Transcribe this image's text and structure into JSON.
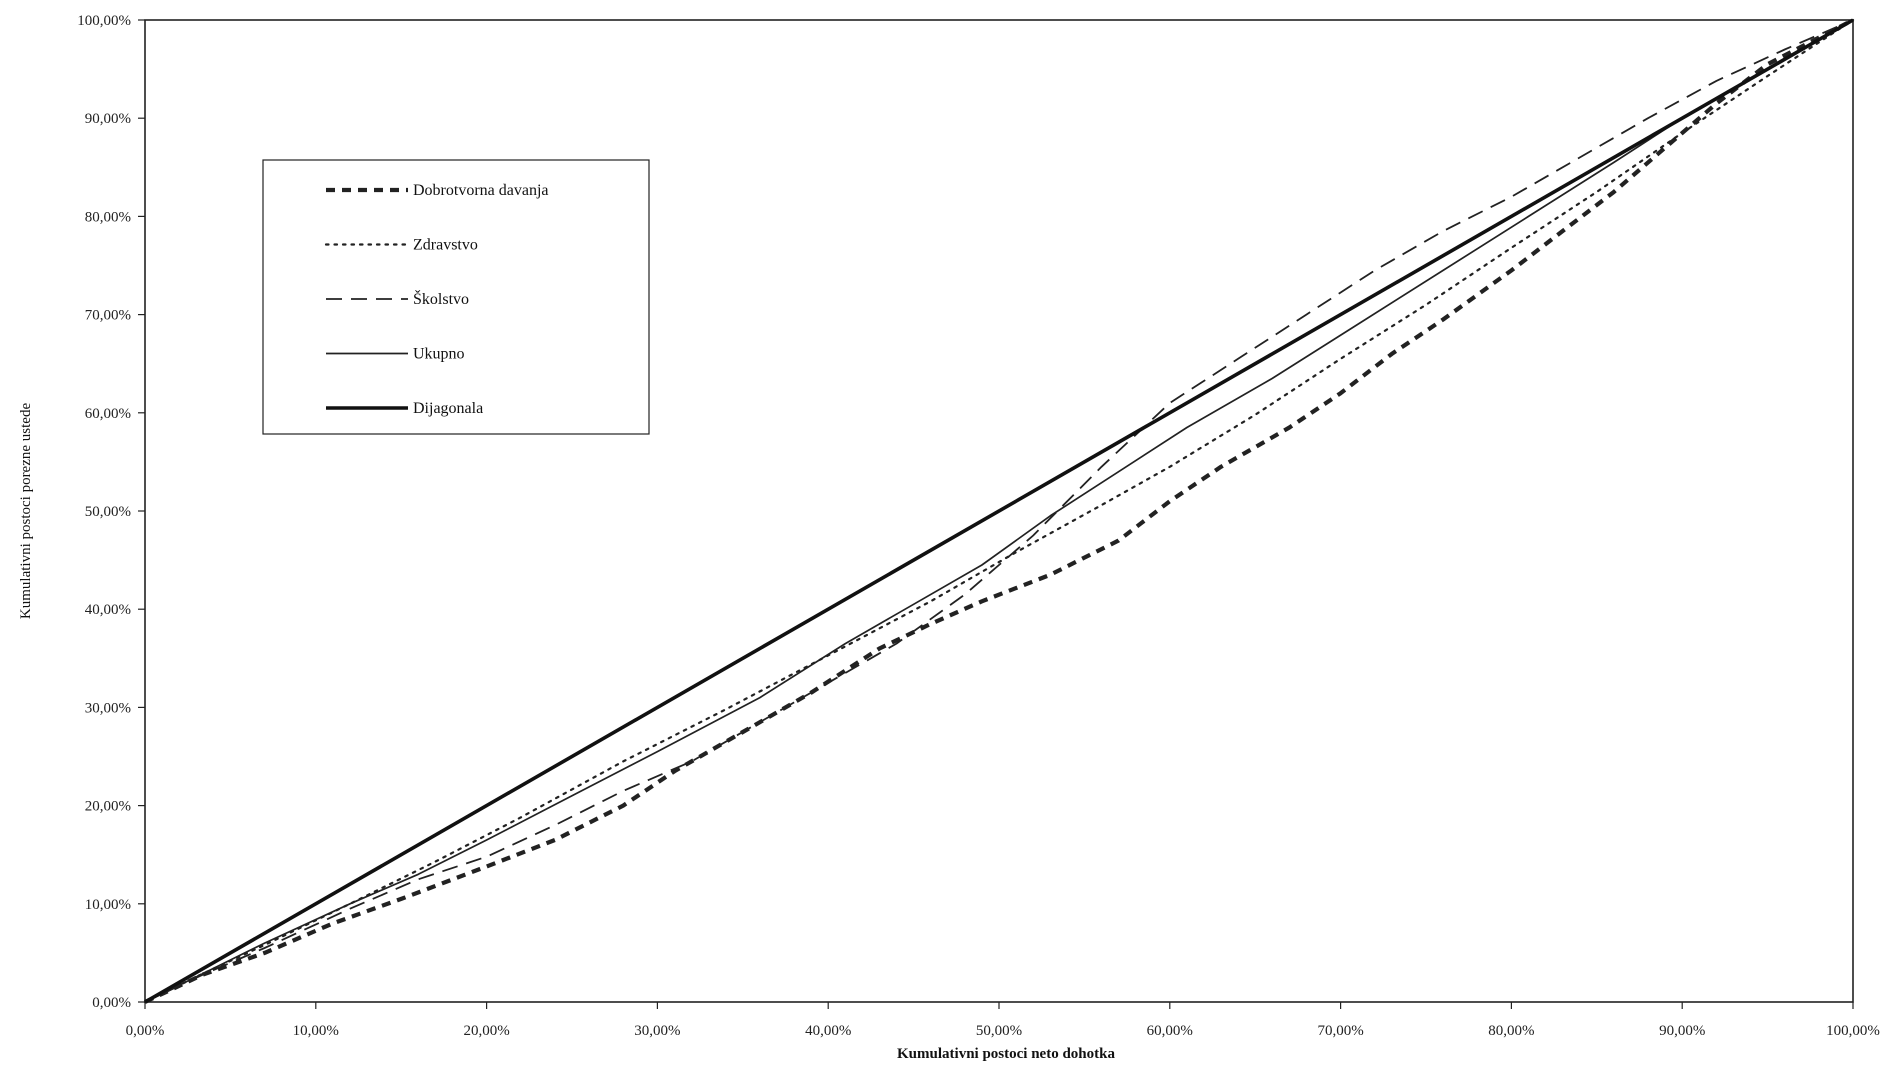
{
  "chart_data": {
    "type": "line",
    "title": "",
    "xlabel": "Kumulativni postoci neto dohotka",
    "ylabel": "Kumulativni postoci porezne ustede",
    "xlim": [
      0,
      100
    ],
    "ylim": [
      0,
      100
    ],
    "x_tick_labels": [
      "0,00%",
      "10,00%",
      "20,00%",
      "30,00%",
      "40,00%",
      "50,00%",
      "60,00%",
      "70,00%",
      "80,00%",
      "90,00%",
      "100,00%"
    ],
    "y_tick_labels": [
      "0,00%",
      "10,00%",
      "20,00%",
      "30,00%",
      "40,00%",
      "50,00%",
      "60,00%",
      "70,00%",
      "80,00%",
      "90,00%",
      "100,00%"
    ],
    "grid": false,
    "legend_position": "top-left",
    "series": [
      {
        "name": "Dobrotvorna davanja",
        "style": "heavy-dashed",
        "color": "#222222",
        "points": [
          [
            0,
            0
          ],
          [
            3.4,
            2.8
          ],
          [
            7,
            5
          ],
          [
            11,
            8
          ],
          [
            15,
            10.5
          ],
          [
            20,
            13.8
          ],
          [
            24,
            16.5
          ],
          [
            28,
            20
          ],
          [
            31,
            23.5
          ],
          [
            35,
            27.5
          ],
          [
            39,
            31.5
          ],
          [
            43,
            36
          ],
          [
            46,
            38.5
          ],
          [
            49,
            40.8
          ],
          [
            53,
            43.5
          ],
          [
            57,
            47
          ],
          [
            60,
            51
          ],
          [
            63,
            54.5
          ],
          [
            67,
            58.5
          ],
          [
            70,
            62
          ],
          [
            73,
            66
          ],
          [
            76,
            69.5
          ],
          [
            80,
            74.5
          ],
          [
            83,
            78.5
          ],
          [
            86,
            82.5
          ],
          [
            89,
            87
          ],
          [
            92,
            91.5
          ],
          [
            95,
            95.5
          ],
          [
            100,
            100
          ]
        ]
      },
      {
        "name": "Zdravstvo",
        "style": "dotted",
        "color": "#222222",
        "points": [
          [
            0,
            0
          ],
          [
            3.4,
            2.9
          ],
          [
            7,
            5.8
          ],
          [
            12,
            10
          ],
          [
            17,
            14.3
          ],
          [
            22,
            18.8
          ],
          [
            28,
            24.5
          ],
          [
            34,
            29.8
          ],
          [
            40,
            35.3
          ],
          [
            46,
            40.8
          ],
          [
            51,
            45.8
          ],
          [
            56,
            50.6
          ],
          [
            60,
            54.5
          ],
          [
            65,
            59.8
          ],
          [
            70,
            65.5
          ],
          [
            75,
            71
          ],
          [
            80,
            76.8
          ],
          [
            85,
            82.5
          ],
          [
            90,
            88.5
          ],
          [
            95,
            94.3
          ],
          [
            100,
            100
          ]
        ]
      },
      {
        "name": "Školstvo",
        "style": "dashed",
        "color": "#222222",
        "points": [
          [
            0,
            0
          ],
          [
            3.4,
            2.8
          ],
          [
            7,
            5.5
          ],
          [
            12,
            9.5
          ],
          [
            16,
            12.5
          ],
          [
            20,
            14.8
          ],
          [
            24,
            18
          ],
          [
            28,
            21.5
          ],
          [
            32,
            24.5
          ],
          [
            36,
            28.5
          ],
          [
            40,
            32.5
          ],
          [
            44,
            36.5
          ],
          [
            48,
            41.5
          ],
          [
            52,
            47.5
          ],
          [
            56,
            54.5
          ],
          [
            60,
            61
          ],
          [
            64,
            65.5
          ],
          [
            68,
            70
          ],
          [
            72,
            74.5
          ],
          [
            76,
            78.5
          ],
          [
            80,
            82
          ],
          [
            84,
            86
          ],
          [
            88,
            90
          ],
          [
            92,
            93.8
          ],
          [
            96,
            97
          ],
          [
            100,
            100
          ]
        ]
      },
      {
        "name": "Ukupno",
        "style": "solid-thin",
        "color": "#222222",
        "points": [
          [
            0,
            0
          ],
          [
            3.4,
            2.9
          ],
          [
            7,
            6
          ],
          [
            12,
            10
          ],
          [
            16,
            13
          ],
          [
            20,
            16.5
          ],
          [
            25,
            21
          ],
          [
            30,
            25.5
          ],
          [
            36,
            31
          ],
          [
            41,
            36.5
          ],
          [
            45,
            40.5
          ],
          [
            49,
            44.5
          ],
          [
            53,
            49.5
          ],
          [
            57,
            54
          ],
          [
            61,
            58.5
          ],
          [
            66,
            63.5
          ],
          [
            71,
            69
          ],
          [
            76,
            74.5
          ],
          [
            81,
            80
          ],
          [
            86,
            85.5
          ],
          [
            90,
            90
          ],
          [
            95,
            95
          ],
          [
            100,
            100
          ]
        ]
      },
      {
        "name": "Dijagonala",
        "style": "solid-thick",
        "color": "#111111",
        "points": [
          [
            0,
            0
          ],
          [
            100,
            100
          ]
        ]
      }
    ]
  }
}
